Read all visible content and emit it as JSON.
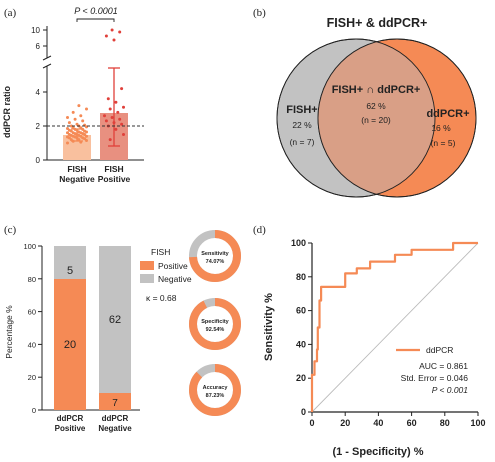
{
  "panel_labels": {
    "a": "(a)",
    "b": "(b)",
    "c": "(c)",
    "d": "(d)"
  },
  "colors": {
    "orange": "#f58a55",
    "light_orange": "#f9c09e",
    "salmon": "#e89080",
    "red": "#e0403a",
    "grey": "#c2c2c2",
    "venn_overlap": "#d99f86",
    "dark": "#222222"
  },
  "chart_data": [
    {
      "panel": "a",
      "type": "scatter",
      "title": "",
      "ylabel": "ddPCR ratio",
      "categories": [
        "FISH Negative",
        "FISH Positive"
      ],
      "category_lines": [
        [
          "FISH",
          "Negative"
        ],
        [
          "FISH",
          "Positive"
        ]
      ],
      "bar_means": [
        1.5,
        2.8
      ],
      "bar_sd": [
        0.35,
        1.8
      ],
      "yticks_lower": [
        "0",
        "2",
        "4"
      ],
      "yticks_upper": [
        "6",
        "10"
      ],
      "axis_break": true,
      "reference_line": 2,
      "significance": "P < 0.0001",
      "points_negative": [
        1.0,
        1.05,
        1.1,
        1.15,
        1.2,
        1.2,
        1.25,
        1.3,
        1.3,
        1.3,
        1.35,
        1.35,
        1.4,
        1.4,
        1.4,
        1.45,
        1.45,
        1.5,
        1.5,
        1.5,
        1.55,
        1.55,
        1.6,
        1.6,
        1.6,
        1.65,
        1.65,
        1.7,
        1.7,
        1.75,
        1.75,
        1.8,
        1.8,
        1.85,
        1.9,
        1.9,
        1.95,
        2.0,
        2.0,
        2.05,
        2.1,
        2.2,
        2.3,
        2.4,
        2.5,
        2.6,
        2.8,
        3.0,
        3.2
      ],
      "points_positive": [
        1.2,
        1.5,
        1.8,
        2.0,
        2.1,
        2.2,
        2.3,
        2.4,
        2.5,
        2.6,
        2.8,
        3.0,
        3.1,
        3.4,
        3.6,
        4.2,
        7.5,
        8.5,
        9.5,
        10
      ]
    },
    {
      "panel": "b",
      "type": "venn",
      "title": "FISH+ & ddPCR+",
      "sets": [
        {
          "name": "FISH+",
          "only_pct": "22 %",
          "only_n": "(n = 7)"
        },
        {
          "name": "ddPCR+",
          "only_pct": "16 %",
          "only_n": "(n = 5)"
        }
      ],
      "intersection": {
        "name": "FISH+ ∩ ddPCR+",
        "pct": "62 %",
        "n": "(n = 20)"
      }
    },
    {
      "panel": "c",
      "type": "bar",
      "ylabel": "Percentage %",
      "categories": [
        "ddPCR Positive",
        "ddPCR Negative"
      ],
      "category_lines": [
        [
          "ddPCR",
          "Positive"
        ],
        [
          "ddPCR",
          "Negative"
        ]
      ],
      "yticks": [
        "0",
        "20",
        "40",
        "60",
        "80",
        "100"
      ],
      "ylim": [
        0,
        100
      ],
      "legend_title": "FISH",
      "series": [
        {
          "name": "Positive",
          "counts": [
            20,
            7
          ],
          "percent": [
            80,
            10.1
          ]
        },
        {
          "name": "Negative",
          "counts": [
            5,
            62
          ],
          "percent": [
            20,
            89.9
          ]
        }
      ],
      "kappa": "κ = 0.68",
      "donuts": [
        {
          "label": "Sensitivity",
          "value": "74.07%",
          "fraction": 0.7407
        },
        {
          "label": "Specificity",
          "value": "92.54%",
          "fraction": 0.9254
        },
        {
          "label": "Accuracy",
          "value": "87.23%",
          "fraction": 0.8723
        }
      ]
    },
    {
      "panel": "d",
      "type": "line",
      "xlabel": "(1 - Specificity) %",
      "ylabel": "Sensitivity %",
      "xlim": [
        0,
        100
      ],
      "ylim": [
        0,
        100
      ],
      "xticks": [
        "0",
        "20",
        "40",
        "60",
        "80",
        "100"
      ],
      "yticks": [
        "0",
        "20",
        "40",
        "60",
        "80",
        "100"
      ],
      "series": [
        {
          "name": "ddPCR",
          "x": [
            0,
            0,
            1.5,
            1.5,
            3,
            3,
            3.5,
            3.5,
            4.5,
            4.5,
            5.5,
            5.5,
            15,
            15,
            20,
            20,
            27,
            27,
            35,
            35,
            37,
            37,
            50,
            50,
            60,
            60,
            85,
            85,
            100
          ],
          "y": [
            0,
            22,
            22,
            30,
            30,
            37,
            37,
            50,
            50,
            66,
            66,
            74,
            74,
            74,
            74,
            82,
            82,
            85,
            85,
            89,
            89,
            89,
            89,
            93,
            93,
            96,
            96,
            100,
            100
          ]
        }
      ],
      "legend_name": "ddPCR",
      "stats": [
        "AUC = 0.861",
        "Std. Error = 0.046"
      ],
      "p_value": "P < 0.001"
    }
  ]
}
